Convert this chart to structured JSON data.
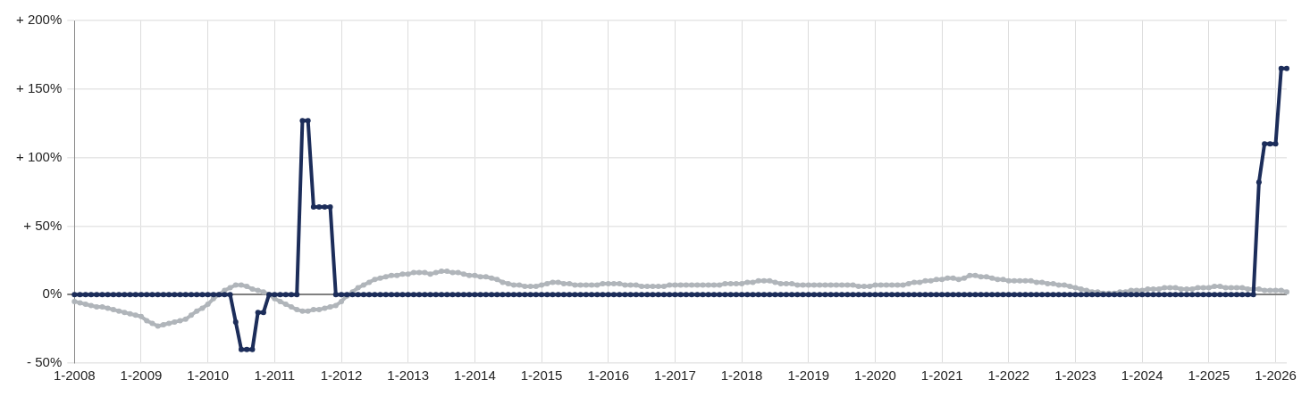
{
  "chart_data": {
    "type": "line",
    "categories": [
      "1-2008",
      null,
      null,
      null,
      null,
      null,
      null,
      null,
      null,
      null,
      null,
      null,
      "1-2009",
      null,
      null,
      null,
      null,
      null,
      null,
      null,
      null,
      null,
      null,
      null,
      "1-2010",
      null,
      null,
      null,
      null,
      null,
      null,
      null,
      null,
      null,
      null,
      null,
      "1-2011",
      null,
      null,
      null,
      null,
      null,
      null,
      null,
      null,
      null,
      null,
      null,
      "1-2012",
      null,
      null,
      null,
      null,
      null,
      null,
      null,
      null,
      null,
      null,
      null,
      "1-2013",
      null,
      null,
      null,
      null,
      null,
      null,
      null,
      null,
      null,
      null,
      null,
      "1-2014",
      null,
      null,
      null,
      null,
      null,
      null,
      null,
      null,
      null,
      null,
      null,
      "1-2015",
      null,
      null,
      null,
      null,
      null,
      null,
      null,
      null,
      null,
      null,
      null,
      "1-2016",
      null,
      null,
      null,
      null,
      null,
      null,
      null,
      null,
      null,
      null,
      null,
      "1-2017",
      null,
      null,
      null,
      null,
      null,
      null,
      null,
      null,
      null,
      null,
      null,
      "1-2018",
      null,
      null,
      null,
      null,
      null,
      null,
      null,
      null,
      null,
      null,
      null,
      "1-2019",
      null,
      null,
      null,
      null,
      null,
      null,
      null,
      null,
      null,
      null,
      null,
      "1-2020",
      null,
      null,
      null,
      null,
      null,
      null,
      null,
      null,
      null,
      null,
      null,
      "1-2021",
      null,
      null,
      null,
      null,
      null,
      null,
      null,
      null,
      null,
      null,
      null,
      "1-2022",
      null,
      null,
      null,
      null,
      null,
      null,
      null,
      null,
      null,
      null,
      null,
      "1-2023",
      null,
      null,
      null,
      null,
      null,
      null,
      null,
      null,
      null,
      null,
      null,
      "1-2024",
      null,
      null,
      null,
      null,
      null,
      null,
      null,
      null,
      null,
      null,
      null,
      "1-2025",
      null,
      null,
      null,
      null,
      null,
      null,
      null,
      null,
      null,
      null,
      null,
      "1-2026",
      null,
      null
    ],
    "series": [
      {
        "color": "#b0b5ba",
        "values": [
          -5,
          -6,
          -7,
          -8,
          -9,
          -9,
          -10,
          -11,
          -12,
          -13,
          -14,
          -15,
          -16,
          -19,
          -21,
          -23,
          -22,
          -21,
          -20,
          -19,
          -18,
          -15,
          -12,
          -10,
          -7,
          -3,
          0,
          3,
          5,
          7,
          7,
          6,
          4,
          3,
          2,
          0,
          -3,
          -5,
          -7,
          -9,
          -11,
          -12,
          -12,
          -11,
          -11,
          -10,
          -9,
          -8,
          -5,
          -1,
          2,
          5,
          7,
          9,
          11,
          12,
          13,
          14,
          14,
          15,
          15,
          16,
          16,
          16,
          15,
          16,
          17,
          17,
          16,
          16,
          15,
          14,
          14,
          13,
          13,
          12,
          11,
          9,
          8,
          7,
          7,
          6,
          6,
          6,
          7,
          8,
          9,
          9,
          8,
          8,
          7,
          7,
          7,
          7,
          7,
          8,
          8,
          8,
          8,
          7,
          7,
          7,
          6,
          6,
          6,
          6,
          6,
          7,
          7,
          7,
          7,
          7,
          7,
          7,
          7,
          7,
          7,
          8,
          8,
          8,
          8,
          9,
          9,
          10,
          10,
          10,
          9,
          8,
          8,
          8,
          7,
          7,
          7,
          7,
          7,
          7,
          7,
          7,
          7,
          7,
          7,
          6,
          6,
          6,
          7,
          7,
          7,
          7,
          7,
          7,
          8,
          9,
          9,
          10,
          10,
          11,
          11,
          12,
          12,
          11,
          12,
          14,
          14,
          13,
          13,
          12,
          11,
          11,
          10,
          10,
          10,
          10,
          10,
          9,
          9,
          8,
          8,
          7,
          7,
          6,
          5,
          4,
          3,
          2,
          2,
          1,
          1,
          1,
          2,
          2,
          3,
          3,
          3,
          4,
          4,
          4,
          5,
          5,
          5,
          4,
          4,
          4,
          5,
          5,
          5,
          6,
          6,
          5,
          5,
          5,
          5,
          4,
          4,
          4,
          3,
          3,
          3,
          3,
          2
        ]
      },
      {
        "color": "#1c2d5a",
        "values": [
          0,
          0,
          0,
          0,
          0,
          0,
          0,
          0,
          0,
          0,
          0,
          0,
          0,
          0,
          0,
          0,
          0,
          0,
          0,
          0,
          0,
          0,
          0,
          0,
          0,
          0,
          0,
          0,
          0,
          -20,
          -40,
          -40,
          -40,
          -13,
          -13,
          0,
          0,
          0,
          0,
          0,
          0,
          127,
          127,
          64,
          64,
          64,
          64,
          0,
          0,
          0,
          0,
          0,
          0,
          0,
          0,
          0,
          0,
          0,
          0,
          0,
          0,
          0,
          0,
          0,
          0,
          0,
          0,
          0,
          0,
          0,
          0,
          0,
          0,
          0,
          0,
          0,
          0,
          0,
          0,
          0,
          0,
          0,
          0,
          0,
          0,
          0,
          0,
          0,
          0,
          0,
          0,
          0,
          0,
          0,
          0,
          0,
          0,
          0,
          0,
          0,
          0,
          0,
          0,
          0,
          0,
          0,
          0,
          0,
          0,
          0,
          0,
          0,
          0,
          0,
          0,
          0,
          0,
          0,
          0,
          0,
          0,
          0,
          0,
          0,
          0,
          0,
          0,
          0,
          0,
          0,
          0,
          0,
          0,
          0,
          0,
          0,
          0,
          0,
          0,
          0,
          0,
          0,
          0,
          0,
          0,
          0,
          0,
          0,
          0,
          0,
          0,
          0,
          0,
          0,
          0,
          0,
          0,
          0,
          0,
          0,
          0,
          0,
          0,
          0,
          0,
          0,
          0,
          0,
          0,
          0,
          0,
          0,
          0,
          0,
          0,
          0,
          0,
          0,
          0,
          0,
          0,
          0,
          0,
          0,
          0,
          0,
          0,
          0,
          0,
          0,
          0,
          0,
          0,
          0,
          0,
          0,
          0,
          0,
          0,
          0,
          0,
          0,
          0,
          0,
          0,
          0,
          0,
          0,
          0,
          0,
          0,
          0,
          0,
          82,
          110,
          110,
          110,
          165,
          165
        ]
      }
    ],
    "ylim": [
      -50,
      200
    ],
    "yticks": [
      {
        "value": -50,
        "label": "- 50%"
      },
      {
        "value": 0,
        "label": "0%"
      },
      {
        "value": 50,
        "label": "+ 50%"
      },
      {
        "value": 100,
        "label": "+ 100%"
      },
      {
        "value": 150,
        "label": "+ 150%"
      },
      {
        "value": 200,
        "label": "+ 200%"
      }
    ],
    "grid": true,
    "marker": "circle"
  }
}
